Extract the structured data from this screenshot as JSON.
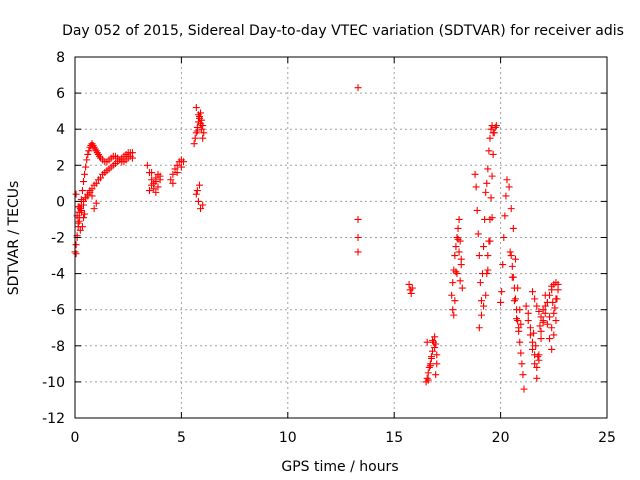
{
  "chart_data": {
    "type": "scatter",
    "title": "Day 052 of 2015, Sidereal Day-to-day VTEC variation (SDTVAR) for receiver adis",
    "xlabel": "GPS time / hours",
    "ylabel": "SDTVAR / TECUs",
    "xlim": [
      0,
      25
    ],
    "ylim": [
      -12,
      8
    ],
    "xticks": [
      0,
      5,
      10,
      15,
      20,
      25
    ],
    "yticks": [
      -12,
      -10,
      -8,
      -6,
      -4,
      -2,
      0,
      2,
      4,
      6,
      8
    ],
    "xtick_labels": [
      "0",
      "5",
      "10",
      "15",
      "20",
      "25"
    ],
    "ytick_labels": [
      "-12",
      "-10",
      "-8",
      "-6",
      "-4",
      "-2",
      "0",
      "2",
      "4",
      "6",
      "8"
    ],
    "grid": true,
    "marker": "+",
    "color": "#ff0000",
    "series": [
      {
        "name": "SDTVAR",
        "x": [
          0.0,
          0.05,
          0.1,
          0.15,
          0.2,
          0.25,
          0.3,
          0.35,
          0.4,
          0.45,
          0.5,
          0.55,
          0.6,
          0.65,
          0.7,
          0.75,
          0.8,
          0.85,
          0.9,
          0.95,
          1.0,
          1.05,
          1.1,
          1.15,
          1.2,
          1.3,
          1.4,
          1.5,
          1.6,
          1.7,
          1.8,
          1.9,
          2.0,
          2.1,
          2.2,
          2.3,
          2.4,
          2.5,
          2.6,
          2.7,
          0.05,
          0.1,
          0.15,
          0.2,
          0.3,
          0.4,
          0.5,
          0.6,
          0.7,
          0.8,
          0.9,
          1.0,
          1.1,
          1.2,
          1.3,
          1.4,
          1.5,
          1.6,
          1.7,
          1.8,
          1.9,
          2.0,
          2.1,
          2.2,
          2.3,
          2.4,
          2.5,
          2.6,
          2.7,
          0.2,
          0.3,
          0.4,
          0.5,
          0.6,
          0.7,
          0.8,
          0.9,
          1.0,
          0.1,
          0.2,
          0.3,
          0.4,
          0.05,
          0.15,
          0.25,
          0.35,
          0.45,
          3.4,
          3.5,
          3.6,
          3.7,
          3.8,
          3.9,
          4.0,
          3.5,
          3.6,
          3.7,
          3.8,
          3.9,
          4.0,
          3.6,
          3.8,
          4.5,
          4.6,
          4.7,
          4.8,
          4.9,
          5.0,
          5.1,
          4.6,
          4.8,
          5.0,
          5.6,
          5.65,
          5.7,
          5.75,
          5.8,
          5.85,
          5.9,
          5.95,
          6.0,
          6.05,
          5.7,
          5.8,
          5.9,
          6.0,
          5.75,
          5.85,
          5.95,
          5.7,
          5.8,
          5.9,
          6.0,
          5.75,
          5.85,
          13.3,
          13.3,
          13.3,
          13.3,
          15.7,
          15.75,
          15.8,
          15.85,
          16.5,
          16.55,
          16.6,
          16.65,
          16.7,
          16.75,
          16.8,
          16.85,
          16.9,
          16.95,
          17.0,
          16.6,
          16.7,
          16.8,
          16.9,
          17.0,
          16.55,
          16.75,
          16.95,
          17.7,
          17.75,
          17.8,
          17.85,
          17.9,
          17.95,
          18.0,
          18.05,
          18.1,
          18.15,
          18.2,
          17.75,
          17.85,
          17.95,
          18.05,
          18.15,
          17.8,
          17.9,
          18.0,
          18.1,
          18.8,
          18.85,
          18.9,
          18.95,
          19.0,
          19.05,
          19.1,
          19.15,
          19.2,
          19.25,
          19.3,
          19.35,
          19.4,
          19.45,
          19.5,
          19.55,
          19.6,
          19.65,
          19.0,
          19.1,
          19.2,
          19.4,
          19.5,
          19.6,
          19.3,
          19.35,
          19.4,
          19.45,
          19.5,
          19.55,
          19.6,
          19.65,
          19.7,
          19.75,
          19.8,
          20.0,
          20.05,
          20.1,
          20.15,
          20.2,
          20.25,
          20.3,
          20.4,
          20.5,
          20.6,
          20.7,
          20.8,
          20.9,
          20.45,
          20.55,
          20.65,
          20.75,
          20.85,
          20.95,
          20.5,
          20.6,
          20.7,
          20.8,
          20.9,
          21.0,
          21.1,
          20.55,
          20.65,
          20.75,
          20.85,
          20.95,
          21.05,
          21.2,
          21.3,
          21.4,
          21.5,
          21.6,
          21.7,
          21.8,
          21.9,
          22.0,
          22.1,
          22.2,
          22.3,
          22.4,
          22.5,
          22.6,
          22.7,
          21.3,
          21.4,
          21.5,
          21.6,
          21.7,
          21.8,
          21.9,
          22.0,
          22.1,
          22.2,
          22.3,
          22.4,
          22.5,
          22.6,
          21.5,
          21.6,
          21.7,
          21.8,
          21.9,
          22.0,
          22.1,
          22.2,
          22.3,
          22.4,
          21.55,
          21.65,
          21.75,
          21.85,
          22.4,
          22.5,
          22.6,
          22.7,
          22.45,
          22.55,
          22.65
        ],
        "y": [
          -2.8,
          -2.4,
          -1.9,
          -1.4,
          -0.9,
          -0.4,
          0.1,
          0.6,
          1.1,
          1.5,
          1.9,
          2.3,
          2.6,
          2.8,
          3.0,
          3.1,
          3.2,
          3.1,
          3.0,
          2.9,
          2.8,
          2.7,
          2.6,
          2.5,
          2.4,
          2.3,
          2.2,
          2.2,
          2.3,
          2.4,
          2.5,
          2.5,
          2.4,
          2.3,
          2.2,
          2.2,
          2.3,
          2.4,
          2.5,
          2.4,
          -2.9,
          -2.0,
          -1.2,
          -0.6,
          -0.2,
          0.0,
          0.2,
          0.3,
          0.5,
          0.7,
          0.9,
          1.0,
          1.2,
          1.3,
          1.5,
          1.6,
          1.7,
          1.8,
          1.9,
          2.0,
          2.1,
          2.2,
          2.3,
          2.4,
          2.5,
          2.6,
          2.7,
          2.7,
          2.7,
          -0.3,
          -0.5,
          -0.2,
          0.2,
          0.4,
          0.6,
          0.3,
          -0.4,
          -0.1,
          -0.8,
          -1.1,
          -0.6,
          -0.9,
          0.4,
          -0.3,
          -1.6,
          -1.4,
          -0.7,
          2.0,
          1.6,
          1.2,
          1.0,
          1.3,
          1.5,
          1.4,
          0.6,
          0.9,
          0.7,
          1.1,
          0.8,
          1.2,
          1.6,
          0.5,
          1.2,
          1.5,
          1.8,
          2.0,
          2.2,
          2.3,
          2.2,
          1.0,
          1.6,
          1.9,
          3.2,
          3.5,
          3.8,
          4.1,
          4.4,
          4.7,
          4.9,
          4.5,
          4.2,
          3.8,
          5.2,
          4.8,
          4.3,
          3.5,
          3.9,
          4.6,
          4.0,
          0.4,
          0.0,
          -0.4,
          -0.2,
          0.6,
          0.9,
          6.3,
          -1.0,
          -2.0,
          -2.8,
          -4.6,
          -4.9,
          -5.1,
          -4.8,
          -10.0,
          -9.8,
          -9.5,
          -9.2,
          -9.0,
          -8.7,
          -8.3,
          -7.8,
          -7.5,
          -7.9,
          -8.5,
          -9.9,
          -9.1,
          -7.7,
          -8.1,
          -9.0,
          -7.8,
          -8.6,
          -9.6,
          -5.2,
          -4.5,
          -3.8,
          -3.0,
          -2.5,
          -2.0,
          -1.5,
          -1.0,
          -2.2,
          -3.5,
          -4.8,
          -6.0,
          -5.5,
          -4.0,
          -2.8,
          -3.2,
          -6.3,
          -3.9,
          -2.1,
          -4.4,
          1.5,
          0.8,
          -0.5,
          -1.8,
          -3.0,
          -4.5,
          -5.5,
          -4.0,
          -2.5,
          -1.0,
          0.5,
          1.0,
          1.8,
          2.8,
          3.5,
          4.0,
          4.2,
          3.8,
          -7.0,
          -6.3,
          -5.8,
          -3.8,
          -2.2,
          -0.9,
          -5.2,
          -4.0,
          -3.0,
          -2.2,
          -1.0,
          0.2,
          1.4,
          2.6,
          3.8,
          4.1,
          4.2,
          -5.6,
          -5.0,
          -3.5,
          -2.0,
          -0.8,
          0.3,
          1.2,
          0.8,
          -0.4,
          -1.5,
          -3.2,
          -4.8,
          -6.0,
          -2.8,
          -4.2,
          -5.5,
          -6.5,
          -7.0,
          -6.8,
          -3.0,
          -4.2,
          -5.4,
          -6.6,
          -7.8,
          -9.0,
          -10.4,
          -3.6,
          -4.8,
          -6.0,
          -7.2,
          -8.4,
          -9.6,
          -5.8,
          -6.6,
          -7.4,
          -8.2,
          -9.0,
          -9.8,
          -8.5,
          -7.2,
          -6.0,
          -5.2,
          -5.6,
          -6.4,
          -7.0,
          -6.2,
          -5.4,
          -4.9,
          -6.2,
          -7.0,
          -7.8,
          -8.5,
          -9.2,
          -8.8,
          -7.6,
          -6.6,
          -5.8,
          -6.8,
          -7.6,
          -8.2,
          -7.4,
          -6.6,
          -5.0,
          -5.4,
          -5.8,
          -6.1,
          -6.4,
          -6.7,
          -6.2,
          -5.6,
          -5.2,
          -4.9,
          -7.3,
          -8.0,
          -8.6,
          -6.9,
          -4.7,
          -4.6,
          -4.5,
          -4.6,
          -5.6,
          -5.9,
          -5.4
        ]
      }
    ]
  }
}
